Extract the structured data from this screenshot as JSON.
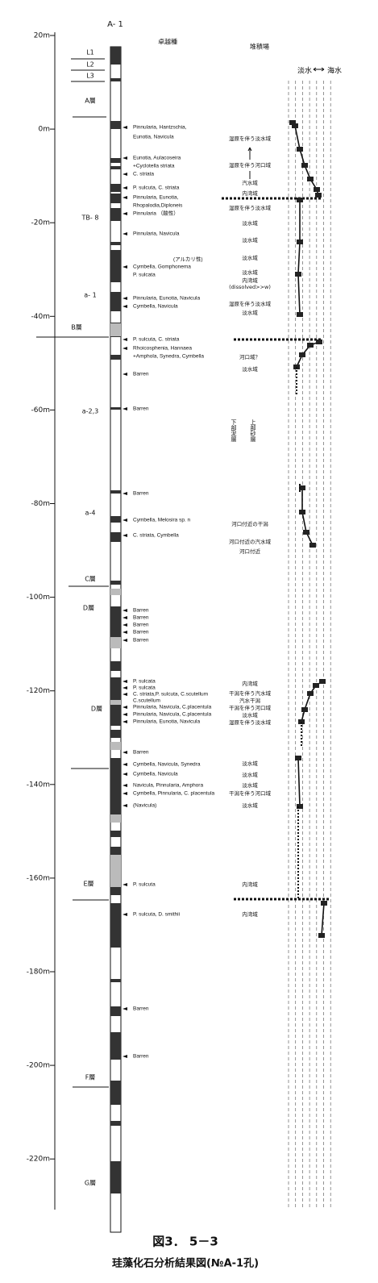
{
  "header": {
    "borehole": "A- 1",
    "species_heading": "卓越種",
    "environment_heading": "堆積場",
    "freshwater": "淡水",
    "seawater": "海水"
  },
  "depth_labels": [
    "20m",
    "0m",
    "-20m",
    "-40m",
    "-60m",
    "-80m",
    "-100m",
    "-120m",
    "-140m",
    "-160m",
    "-180m",
    "-200m",
    "-220m"
  ],
  "layers": [
    "L1",
    "L2",
    "L3",
    "A層",
    "TB- 8",
    "a- 1",
    "B層",
    "a-2,3",
    "a-4",
    "C層",
    "D層",
    "D層",
    "E層",
    "F層",
    "G層"
  ],
  "species": [
    "Pinnularia, Hantzschia,",
    "Eunotia, Navicula",
    "Eunotia, Aulacoseira",
    "+Cyclotella striata",
    "C. striata",
    "P. sulcuta, C. striata",
    "Pinnularia, Eunotia,",
    "Rhopalodia,Diploneis",
    "Pinnularia （酸性）",
    "Pinnularia, Navicula",
    "(アルカリ性)",
    "Cymbella, Gomphonema",
    "P. sulcata",
    "Pinnularia, Eunotia, Navicula",
    "Cymbella, Navicula",
    "P. sulcuta, C. striata",
    "Rhoicosphenia, Hannaea",
    "+Amphola, Synedra, Cymbella",
    "Barren",
    "Barren",
    "Barren",
    "Cymbella, Melosira sp. n",
    "C. striata, Cymbella",
    "Barren",
    "Barren",
    "Barren",
    "Barren",
    "Barren",
    "P. sulcata",
    "P. sulcata",
    "C. striata,P. sulcuta, C.scutellum",
    "C.scutellum",
    "Pinnularia, Navicula, C.placentula",
    "Pinnularia, Navicula, C.placentula",
    "Pinnularia, Eunotia, Navicula",
    "Barren",
    "Cymbella, Navicula, Synedra",
    "Cymbella, Navicula",
    "Navicula, Pinnularia, Amphora",
    "Cymbella, Pinnularia, C. placentula",
    "(Navicula)",
    "P. sulcuta",
    "P. sulcuta, D. smithii",
    "Barren",
    "Barren"
  ],
  "environments": [
    "湿原を伴う淡水域",
    "湿原を伴う河口域",
    "汽水域",
    "内湾域",
    "湿原を伴う淡水域",
    "淡水域",
    "淡水域",
    "淡水域",
    "淡水域",
    "内湾域",
    "(dissolved>>w)",
    "湿原を伴う淡水域",
    "淡水域",
    "河口域？",
    "淡水域",
    "河口付近の干潟",
    "河口付近の汽水域",
    "河口付近",
    "内湾域",
    "干潟を伴う汽水域",
    "汽水干潟",
    "干潟を伴う河口域",
    "淡水域",
    "湿原を伴う淡水域",
    "淡水域",
    "淡水域",
    "淡水域",
    "干潟を伴う河口域",
    "淡水域",
    "内湾域",
    "内湾域"
  ],
  "facies": [
    "下部泥層",
    "上部砂層"
  ],
  "caption": {
    "figure": "図3． 5－3",
    "title": "珪藻化石分析結果図(№A-1孔)"
  }
}
